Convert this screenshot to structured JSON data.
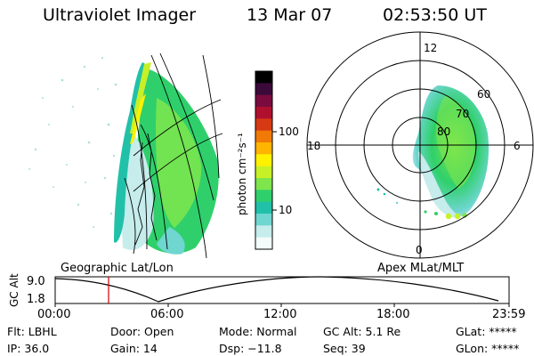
{
  "header": {
    "instrument": "Ultraviolet Imager",
    "date": "13 Mar 07",
    "time": "02:53:50 UT"
  },
  "colorbar": {
    "unit_label": "photon cm⁻²s⁻¹",
    "ticks": [
      "100",
      "10"
    ],
    "colors": [
      "#000000",
      "#3b0a3a",
      "#7a0b3f",
      "#b0102e",
      "#d63a14",
      "#f07a05",
      "#ffb400",
      "#fff200",
      "#c8f026",
      "#7ee64c",
      "#2fd06b",
      "#21c1a9",
      "#6fd6d0",
      "#c6ecec",
      "#f3fbfb"
    ]
  },
  "polar": {
    "clock_labels": [
      "12",
      "18",
      "6",
      "0"
    ],
    "lat_labels": [
      "60",
      "70",
      "80"
    ]
  },
  "strip": {
    "ylabel": "GC Alt",
    "yticks": [
      "9.0",
      "1.8"
    ],
    "left_title": "Geographic Lat/Lon",
    "right_title": "Apex MLat/MLT",
    "xticks": [
      "00:00",
      "06:00",
      "12:00",
      "18:00",
      "23:59"
    ]
  },
  "footer": {
    "row1": [
      "Flt: LBHL",
      "Door: Open",
      "Mode: Normal",
      "GC Alt: 5.1 Re",
      "GLat: *****"
    ],
    "row2": [
      "IP: 36.0",
      "Gain: 14",
      "Dsp:  −11.8",
      "Seq: 39",
      "GLon: *****"
    ]
  }
}
